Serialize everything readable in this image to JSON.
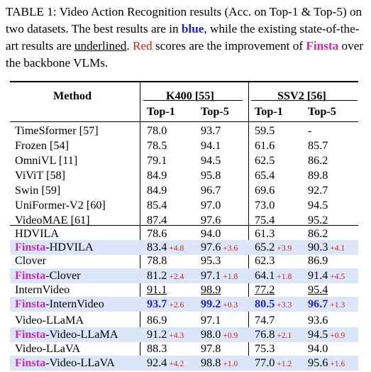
{
  "caption": {
    "lead": "TABLE 1: Video Action Recognition results (Acc. on Top-1 & Top-5) on two datasets. The best results are in ",
    "blue_word": "blue",
    "mid1": ", while the existing state-of-the-art results are ",
    "underlined_word": "underlined",
    "mid2": ". ",
    "red_word": "Red",
    "mid3": " scores are the improvement of ",
    "finsta_word": "Finsta",
    "tail": " over the backbone VLMs."
  },
  "header": {
    "method": "Method",
    "group1": "K400 [55]",
    "group2": "SSV2 [56]",
    "top1": "Top-1",
    "top5": "Top-5"
  },
  "prefix": "Finsta",
  "rows": [
    {
      "method": "TimeSformer [57]",
      "k1": "78.0",
      "k5": "93.7",
      "s1": "59.5",
      "s5": "-"
    },
    {
      "method": "Frozen [54]",
      "k1": "78.5",
      "k5": "94.1",
      "s1": "61.6",
      "s5": "85.7"
    },
    {
      "method": "OmniVL [11]",
      "k1": "79.1",
      "k5": "94.5",
      "s1": "62.5",
      "s5": "86.2"
    },
    {
      "method": "ViViT [58]",
      "k1": "84.9",
      "k5": "95.8",
      "s1": "65.4",
      "s5": "89.8"
    },
    {
      "method": "Swin [59]",
      "k1": "84.9",
      "k5": "96.7",
      "s1": "69.6",
      "s5": "92.7"
    },
    {
      "method": "UniFormer-V2 [60]",
      "k1": "85.4",
      "k5": "97.0",
      "s1": "73.0",
      "s5": "94.5"
    },
    {
      "method": "VideoMAE [61]",
      "k1": "87.4",
      "k5": "97.6",
      "s1": "75.4",
      "s5": "95.2"
    },
    {
      "method": "HDVILA",
      "k1": "78.6",
      "k5": "94.0",
      "s1": "61.3",
      "s5": "86.2"
    },
    {
      "method": "-HDVILA",
      "k1": "83.4",
      "k1i": "+4.8",
      "k5": "97.6",
      "k5i": "+3.6",
      "s1": "65.2",
      "s1i": "+3.9",
      "s5": "90.3",
      "s5i": "+4.1"
    },
    {
      "method": "Clover",
      "k1": "78.8",
      "k5": "95.3",
      "s1": "62.3",
      "s5": "86.9"
    },
    {
      "method": "-Clover",
      "k1": "81.2",
      "k1i": "+2.4",
      "k5": "97.1",
      "k5i": "+1.8",
      "s1": "64.1",
      "s1i": "+1.8",
      "s5": "91.4",
      "s5i": "+4.5"
    },
    {
      "method": "InternVideo",
      "k1": "91.1",
      "k5": "98.9",
      "s1": "77.2",
      "s5": "95.4"
    },
    {
      "method": "-InternVideo",
      "k1": "93.7",
      "k1i": "+2.6",
      "k5": "99.2",
      "k5i": "+0.3",
      "s1": "80.5",
      "s1i": "+3.3",
      "s5": "96.7",
      "s5i": "+1.3"
    },
    {
      "method": "Video-LLaMA",
      "k1": "86.9",
      "k5": "97.1",
      "s1": "74.7",
      "s5": "93.6"
    },
    {
      "method": "-Video-LLaMA",
      "k1": "91.2",
      "k1i": "+4.3",
      "k5": "98.0",
      "k5i": "+0.9",
      "s1": "76.8",
      "s1i": "+2.1",
      "s5": "94.5",
      "s5i": "+0.9"
    },
    {
      "method": "Video-LLaVA",
      "k1": "88.3",
      "k5": "97.8",
      "s1": "75.3",
      "s5": "94.0"
    },
    {
      "method": "-Video-LLaVA",
      "k1": "92.4",
      "k1i": "+4.2",
      "k5": "98.8",
      "k5i": "+1.0",
      "s1": "77.0",
      "s1i": "+1.2",
      "s5": "95.6",
      "s5i": "+1.6"
    }
  ],
  "colors": {
    "best": "#1f1fd6",
    "improvement": "#d51f1f",
    "finsta": "#c72cb0",
    "shade": "#dbe6f8"
  }
}
